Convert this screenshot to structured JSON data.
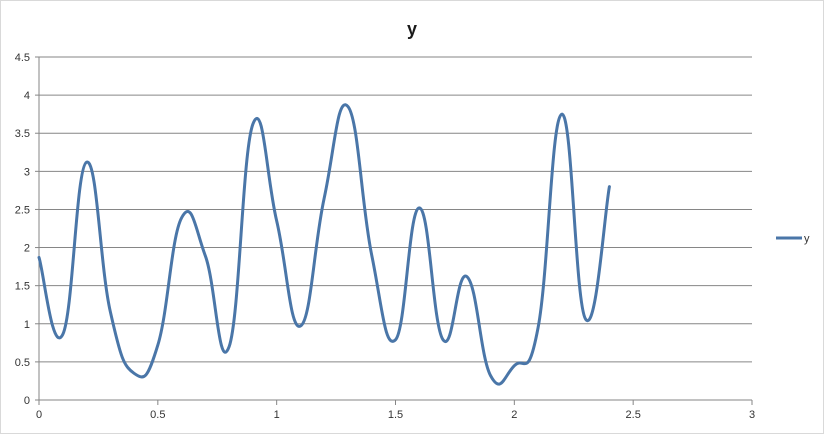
{
  "chart_data": {
    "type": "line",
    "title": "y",
    "xlabel": "",
    "ylabel": "",
    "xlim": [
      0,
      3
    ],
    "ylim": [
      0,
      4.5
    ],
    "x_ticks": [
      "0",
      "0.5",
      "1",
      "1.5",
      "2",
      "2.5",
      "3"
    ],
    "y_ticks": [
      "0",
      "0.5",
      "1",
      "1.5",
      "2",
      "2.5",
      "3",
      "3.5",
      "4",
      "4.5"
    ],
    "grid": "horizontal",
    "legend_position": "right",
    "series": [
      {
        "name": "y",
        "color": "#4a76a8",
        "x": [
          0,
          0.1,
          0.2,
          0.3,
          0.4,
          0.5,
          0.6,
          0.7,
          0.8,
          0.9,
          1.0,
          1.1,
          1.2,
          1.3,
          1.4,
          1.5,
          1.6,
          1.7,
          1.8,
          1.9,
          2.0,
          2.1,
          2.2,
          2.3,
          2.4
        ],
        "values": [
          1.87,
          0.86,
          3.12,
          1.16,
          0.35,
          0.72,
          2.39,
          1.89,
          0.7,
          3.62,
          2.35,
          0.97,
          2.65,
          3.85,
          1.9,
          0.79,
          2.52,
          0.79,
          1.62,
          0.32,
          0.45,
          0.95,
          3.75,
          1.06,
          2.8
        ]
      }
    ]
  }
}
